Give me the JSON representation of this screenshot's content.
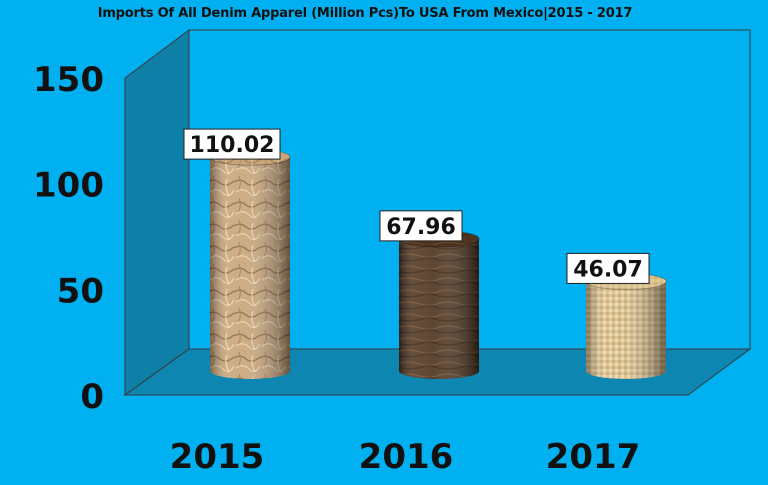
{
  "chart_data": {
    "type": "bar",
    "title": "Imports Of All Denim Apparel (Million Pcs)To USA From Mexico|2015 - 2017",
    "categories": [
      "2015",
      "2016",
      "2017"
    ],
    "values": [
      110.02,
      67.96,
      46.07
    ],
    "data_labels": [
      "110.02",
      "67.96",
      "46.07"
    ],
    "y_ticks": [
      "0",
      "50",
      "100",
      "150"
    ],
    "ylim": [
      0,
      150
    ],
    "grid": false,
    "legend": "none",
    "style": "3d-cylinder",
    "colors": {
      "background": "#00b0f0",
      "back_wall": "#00b0f0",
      "side_wall": "#0e7fa6",
      "floor": "#0d86b1",
      "edges": "#3a3a3a",
      "bar_fills": [
        "#c8a57a",
        "#4f3520",
        "#d9bf8c"
      ]
    },
    "bar_textures": [
      "crumpled-paper",
      "dark-wood",
      "woven-fabric"
    ]
  }
}
